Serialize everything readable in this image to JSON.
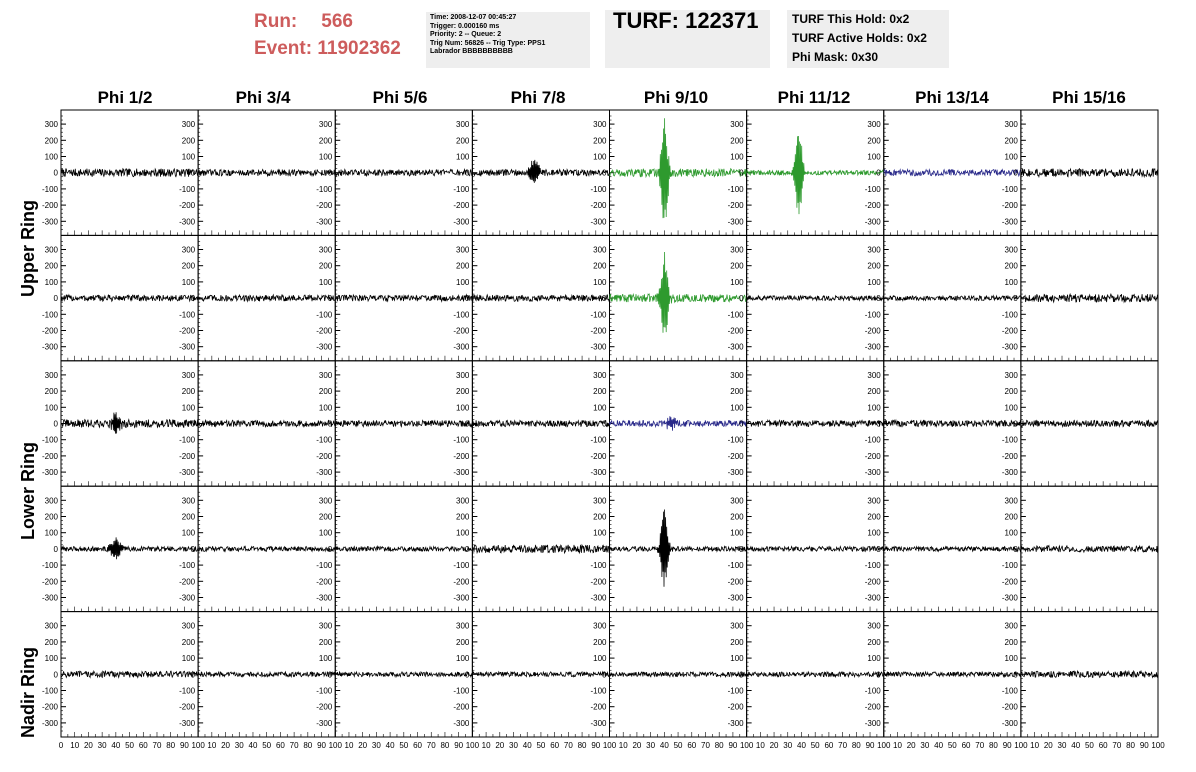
{
  "header": {
    "run_label": "Run:",
    "run_value": "566",
    "event_label": "Event:",
    "event_value": "11902362",
    "info_lines": [
      "Time: 2008-12-07 00:45:27",
      "Trigger: 0.000160 ms",
      "Priority: 2 -- Queue: 2",
      "Trig Num: 56826 -- Trig Type: PPS1",
      "Labrador BBBBBBBBBB"
    ],
    "turf_title": "TURF: 122371",
    "turf_lines": [
      "TURF This Hold: 0x2",
      "TURF Active Holds: 0x2",
      "Phi Mask: 0x30"
    ]
  },
  "columns": [
    "Phi 1/2",
    "Phi 3/4",
    "Phi 5/6",
    "Phi 7/8",
    "Phi 9/10",
    "Phi 11/12",
    "Phi 13/14",
    "Phi 15/16"
  ],
  "ring_labels": [
    "Upper Ring",
    "Lower Ring",
    "Nadir Ring"
  ],
  "y_ticks": [
    "300",
    "200",
    "100",
    "0",
    "-100",
    "-200",
    "-300"
  ],
  "x_ticks": [
    "0",
    "10",
    "20",
    "30",
    "40",
    "50",
    "60",
    "70",
    "80",
    "90",
    "100"
  ],
  "colors": {
    "header_accent": "#cd5c5c",
    "trace_default": "#000000",
    "trace_triggered": "#2e9a2e",
    "trace_masked": "#2a2a8a"
  },
  "chart_data": {
    "type": "line",
    "xlabel": "",
    "ylabel": "",
    "xlim": [
      0,
      100
    ],
    "ylim": [
      -350,
      350
    ],
    "rows": 5,
    "cols": 8,
    "panels": [
      {
        "row": 0,
        "col": 0,
        "color": "black",
        "amplitude": 25,
        "burst_at": null,
        "burst_peak": 0
      },
      {
        "row": 0,
        "col": 1,
        "color": "black",
        "amplitude": 20,
        "burst_at": null,
        "burst_peak": 0
      },
      {
        "row": 0,
        "col": 2,
        "color": "black",
        "amplitude": 20,
        "burst_at": null,
        "burst_peak": 0
      },
      {
        "row": 0,
        "col": 3,
        "color": "black",
        "amplitude": 20,
        "burst_at": 45,
        "burst_peak": 80
      },
      {
        "row": 0,
        "col": 4,
        "color": "green",
        "amplitude": 25,
        "burst_at": 40,
        "burst_peak": 350
      },
      {
        "row": 0,
        "col": 5,
        "color": "green",
        "amplitude": 15,
        "burst_at": 38,
        "burst_peak": 300
      },
      {
        "row": 0,
        "col": 6,
        "color": "blue",
        "amplitude": 20,
        "burst_at": null,
        "burst_peak": 0
      },
      {
        "row": 0,
        "col": 7,
        "color": "black",
        "amplitude": 25,
        "burst_at": null,
        "burst_peak": 0
      },
      {
        "row": 1,
        "col": 0,
        "color": "black",
        "amplitude": 20,
        "burst_at": null,
        "burst_peak": 0
      },
      {
        "row": 1,
        "col": 1,
        "color": "black",
        "amplitude": 20,
        "burst_at": null,
        "burst_peak": 0
      },
      {
        "row": 1,
        "col": 2,
        "color": "black",
        "amplitude": 20,
        "burst_at": null,
        "burst_peak": 0
      },
      {
        "row": 1,
        "col": 3,
        "color": "black",
        "amplitude": 20,
        "burst_at": null,
        "burst_peak": 0
      },
      {
        "row": 1,
        "col": 4,
        "color": "green",
        "amplitude": 25,
        "burst_at": 40,
        "burst_peak": 300
      },
      {
        "row": 1,
        "col": 5,
        "color": "black",
        "amplitude": 15,
        "burst_at": null,
        "burst_peak": 0
      },
      {
        "row": 1,
        "col": 6,
        "color": "black",
        "amplitude": 15,
        "burst_at": null,
        "burst_peak": 0
      },
      {
        "row": 1,
        "col": 7,
        "color": "black",
        "amplitude": 25,
        "burst_at": null,
        "burst_peak": 0
      },
      {
        "row": 2,
        "col": 0,
        "color": "black",
        "amplitude": 25,
        "burst_at": 40,
        "burst_peak": 60
      },
      {
        "row": 2,
        "col": 1,
        "color": "black",
        "amplitude": 20,
        "burst_at": null,
        "burst_peak": 0
      },
      {
        "row": 2,
        "col": 2,
        "color": "black",
        "amplitude": 20,
        "burst_at": null,
        "burst_peak": 0
      },
      {
        "row": 2,
        "col": 3,
        "color": "black",
        "amplitude": 20,
        "burst_at": null,
        "burst_peak": 0
      },
      {
        "row": 2,
        "col": 4,
        "color": "blue",
        "amplitude": 20,
        "burst_at": 45,
        "burst_peak": 40
      },
      {
        "row": 2,
        "col": 5,
        "color": "black",
        "amplitude": 20,
        "burst_at": null,
        "burst_peak": 0
      },
      {
        "row": 2,
        "col": 6,
        "color": "black",
        "amplitude": 20,
        "burst_at": null,
        "burst_peak": 0
      },
      {
        "row": 2,
        "col": 7,
        "color": "black",
        "amplitude": 20,
        "burst_at": null,
        "burst_peak": 0
      },
      {
        "row": 3,
        "col": 0,
        "color": "black",
        "amplitude": 15,
        "burst_at": 40,
        "burst_peak": 70
      },
      {
        "row": 3,
        "col": 1,
        "color": "black",
        "amplitude": 15,
        "burst_at": null,
        "burst_peak": 0
      },
      {
        "row": 3,
        "col": 2,
        "color": "black",
        "amplitude": 15,
        "burst_at": null,
        "burst_peak": 0
      },
      {
        "row": 3,
        "col": 3,
        "color": "black",
        "amplitude": 25,
        "burst_at": null,
        "burst_peak": 0
      },
      {
        "row": 3,
        "col": 4,
        "color": "black",
        "amplitude": 15,
        "burst_at": 40,
        "burst_peak": 260
      },
      {
        "row": 3,
        "col": 5,
        "color": "black",
        "amplitude": 15,
        "burst_at": null,
        "burst_peak": 0
      },
      {
        "row": 3,
        "col": 6,
        "color": "black",
        "amplitude": 15,
        "burst_at": null,
        "burst_peak": 0
      },
      {
        "row": 3,
        "col": 7,
        "color": "black",
        "amplitude": 20,
        "burst_at": null,
        "burst_peak": 0
      },
      {
        "row": 4,
        "col": 0,
        "color": "black",
        "amplitude": 20,
        "burst_at": null,
        "burst_peak": 0
      },
      {
        "row": 4,
        "col": 1,
        "color": "black",
        "amplitude": 15,
        "burst_at": null,
        "burst_peak": 0
      },
      {
        "row": 4,
        "col": 2,
        "color": "black",
        "amplitude": 15,
        "burst_at": null,
        "burst_peak": 0
      },
      {
        "row": 4,
        "col": 3,
        "color": "black",
        "amplitude": 15,
        "burst_at": null,
        "burst_peak": 0
      },
      {
        "row": 4,
        "col": 4,
        "color": "black",
        "amplitude": 15,
        "burst_at": null,
        "burst_peak": 0
      },
      {
        "row": 4,
        "col": 5,
        "color": "black",
        "amplitude": 15,
        "burst_at": null,
        "burst_peak": 0
      },
      {
        "row": 4,
        "col": 6,
        "color": "black",
        "amplitude": 15,
        "burst_at": null,
        "burst_peak": 0
      },
      {
        "row": 4,
        "col": 7,
        "color": "black",
        "amplitude": 20,
        "burst_at": null,
        "burst_peak": 0
      }
    ]
  }
}
